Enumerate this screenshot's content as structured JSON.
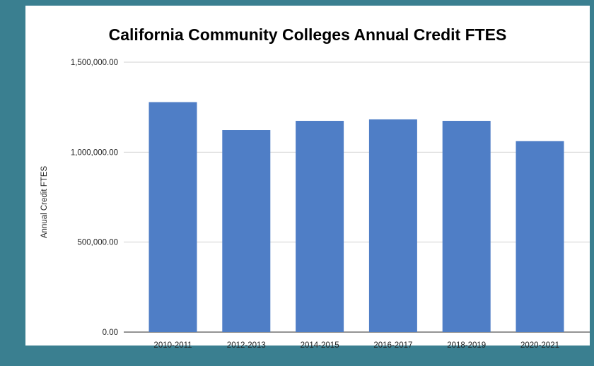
{
  "chart_data": {
    "type": "bar",
    "title": "California Community Colleges Annual Credit FTES",
    "xlabel": "",
    "ylabel": "Annual Credit FTES",
    "categories": [
      "2010-2011",
      "2012-2013",
      "2014-2015",
      "2016-2017",
      "2018-2019",
      "2020-2021"
    ],
    "values": [
      1278000,
      1123000,
      1174000,
      1182000,
      1174000,
      1061000
    ],
    "ylim": [
      0,
      1500000
    ],
    "yticks": [
      0,
      500000,
      1000000,
      1500000
    ],
    "ytick_labels": [
      "0.00",
      "500,000.00",
      "1,000,000.00",
      "1,500,000.00"
    ],
    "grid": true,
    "legend": "none",
    "bar_color": "#4f7ec6",
    "frame_color": "#3a7f90"
  }
}
